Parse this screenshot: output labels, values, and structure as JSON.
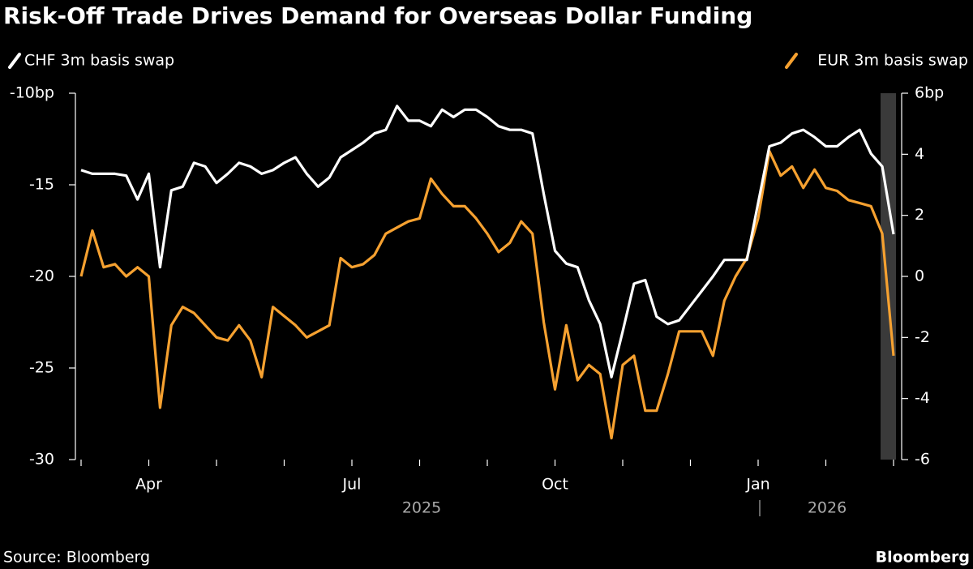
{
  "chart_data": {
    "type": "line",
    "title": "Risk-Off Trade Drives Demand for Overseas Dollar Funding",
    "source": "Source: Bloomberg",
    "brand": "Bloomberg",
    "categories": [
      null,
      null,
      null,
      null,
      null,
      null,
      "Apr",
      null,
      null,
      null,
      null,
      null,
      null,
      null,
      null,
      null,
      null,
      null,
      null,
      null,
      null,
      null,
      null,
      null,
      "Jul",
      null,
      null,
      null,
      null,
      null,
      null,
      null,
      null,
      null,
      null,
      null,
      null,
      null,
      null,
      null,
      null,
      null,
      "Oct",
      null,
      null,
      null,
      null,
      null,
      null,
      null,
      null,
      null,
      null,
      null,
      null,
      null,
      null,
      null,
      null,
      null,
      "Jan",
      null,
      null,
      null,
      null,
      null,
      null,
      null,
      null,
      null,
      null,
      null,
      null
    ],
    "x_groups": [
      "2025",
      "2026"
    ],
    "series": [
      {
        "name": "CHF 3m basis swap",
        "color": "#ffffff",
        "axis": "y",
        "values": [
          -14.2,
          -14.4,
          -14.4,
          -14.4,
          -14.5,
          -15.8,
          -14.4,
          -19.5,
          -15.3,
          -15.1,
          -13.8,
          -14,
          -14.9,
          -14.4,
          -13.8,
          -14,
          -14.4,
          -14.2,
          -13.8,
          -13.5,
          -14.4,
          -15.1,
          -14.6,
          -13.5,
          -13.1,
          -12.7,
          -12.2,
          -12,
          -10.7,
          -11.5,
          -11.5,
          -11.8,
          -10.9,
          -11.3,
          -10.9,
          -10.9,
          -11.3,
          -11.8,
          -12,
          -12,
          -12.2,
          -15.5,
          -18.6,
          -19.3,
          -19.5,
          -21.3,
          -22.6,
          -25.5,
          -23,
          -20.4,
          -20.2,
          -22.2,
          -22.6,
          -22.4,
          -21.6,
          -20.8,
          -20,
          -19.1,
          -19.1,
          -19.1,
          -16,
          -12.9,
          -12.7,
          -12.2,
          -12,
          -12.4,
          -12.9,
          -12.9,
          -12.4,
          -12,
          -13.3,
          -14,
          -17.7
        ]
      },
      {
        "name": "EUR 3m basis swap",
        "color": "#f6a130",
        "axis": "y2",
        "values": [
          0,
          1.5,
          0.3,
          0.4,
          0,
          0.3,
          0,
          -4.3,
          -1.6,
          -1,
          -1.2,
          -1.6,
          -2,
          -2.1,
          -1.6,
          -2.1,
          -3.3,
          -1,
          -1.3,
          -1.6,
          -2,
          -1.8,
          -1.6,
          0.6,
          0.3,
          0.4,
          0.7,
          1.4,
          1.6,
          1.8,
          1.9,
          3.2,
          2.7,
          2.3,
          2.3,
          1.9,
          1.4,
          0.8,
          1.1,
          1.8,
          1.4,
          -1.5,
          -3.7,
          -1.6,
          -3.4,
          -2.9,
          -3.2,
          -5.3,
          -2.9,
          -2.6,
          -4.4,
          -4.4,
          -3.2,
          -1.8,
          -1.8,
          -1.8,
          -2.6,
          -0.8,
          0,
          0.6,
          1.9,
          4.1,
          3.3,
          3.6,
          2.9,
          3.5,
          2.9,
          2.8,
          2.5,
          2.4,
          2.3,
          1.4,
          -2.6
        ]
      }
    ],
    "ylim": [
      -30,
      -10
    ],
    "y_inverted": true,
    "yticks": [
      {
        "value": -10,
        "label": "-10bp"
      },
      -15,
      -20,
      -25,
      -30
    ],
    "y2lim": [
      -6,
      6
    ],
    "y2ticks": [
      -6,
      -4,
      -2,
      0,
      2,
      4,
      {
        "value": 6,
        "label": "6bp"
      }
    ],
    "grid": false
  }
}
